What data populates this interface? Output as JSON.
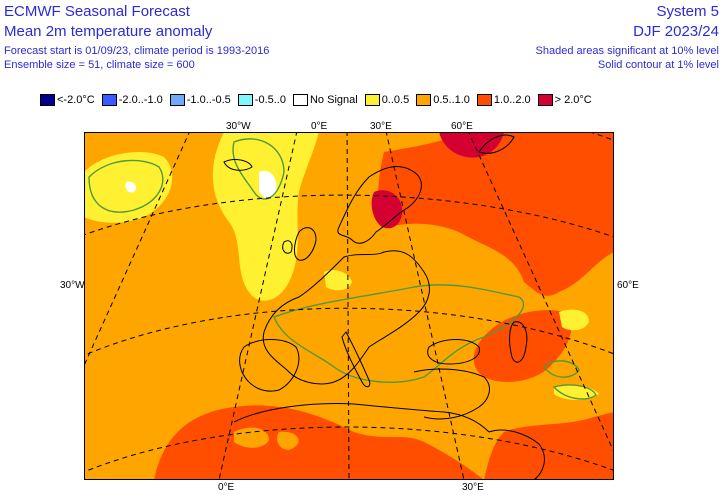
{
  "header": {
    "left_title": "ECMWF Seasonal Forecast",
    "left_subtitle": "Mean 2m temperature anomaly",
    "left_line3": "Forecast start is 01/09/23, climate period is 1993-2016",
    "left_line4": "Ensemble size = 51, climate size = 600",
    "right_title": "System 5",
    "right_subtitle": "DJF 2023/24",
    "right_line3": "Shaded areas significant at 10% level",
    "right_line4": "Solid contour at 1% level"
  },
  "legend": [
    {
      "label": "<-2.0°C",
      "color": "#00008c",
      "icon": "swatch-dark-blue"
    },
    {
      "label": "-2.0..-1.0",
      "color": "#3a5bff",
      "icon": "swatch-blue"
    },
    {
      "label": "-1.0..-0.5",
      "color": "#6faaff",
      "icon": "swatch-light-blue"
    },
    {
      "label": "-0.5..0",
      "color": "#7ff7ff",
      "icon": "swatch-cyan"
    },
    {
      "label": "No Signal",
      "color": "#ffffff",
      "icon": "swatch-white"
    },
    {
      "label": "0..0.5",
      "color": "#fff032",
      "icon": "swatch-yellow"
    },
    {
      "label": "0.5..1.0",
      "color": "#ffa500",
      "icon": "swatch-orange"
    },
    {
      "label": "1.0..2.0",
      "color": "#ff4e00",
      "icon": "swatch-red-orange"
    },
    {
      "label": "> 2.0°C",
      "color": "#d50032",
      "icon": "swatch-crimson"
    }
  ],
  "axis_labels": {
    "top_30w": "30°W",
    "top_0e": "0°E",
    "top_30e": "30°E",
    "top_60e": "60°E",
    "left_30w": "30°W",
    "right_60e": "60°E",
    "bottom_0e": "0°E",
    "bottom_30e": "30°E"
  },
  "colors": {
    "title_text": "#2b2bd6",
    "contour_1pct": "#4f9a3c",
    "grid": "#000000",
    "coastline": "#000000"
  }
}
